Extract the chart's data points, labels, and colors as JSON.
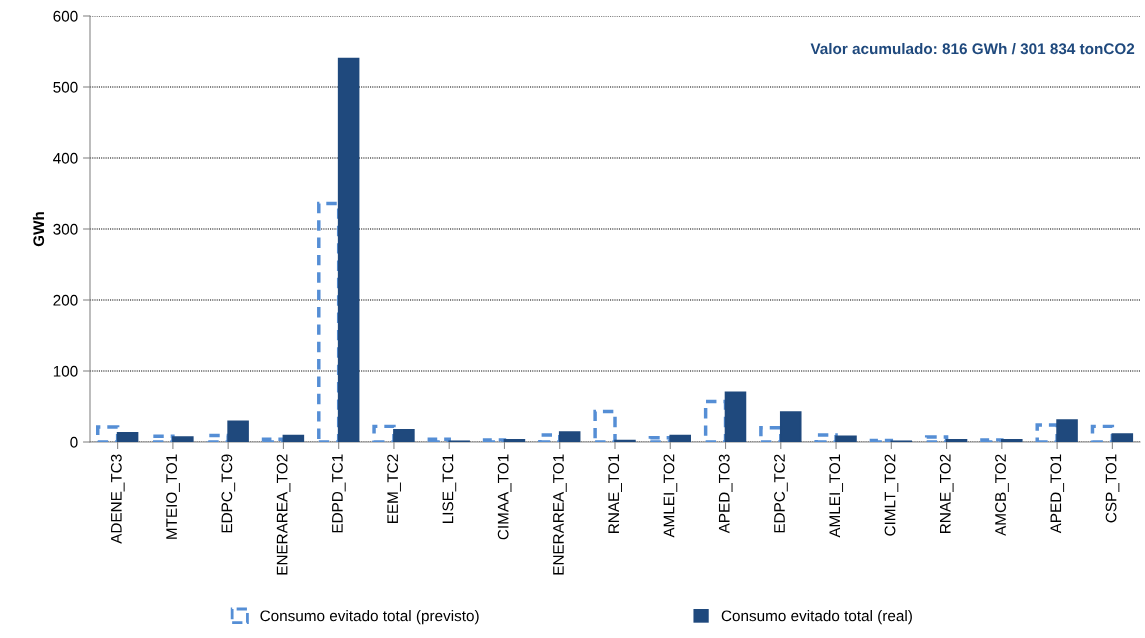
{
  "chart_data": {
    "type": "bar",
    "ylabel": "GWh",
    "categories": [
      "ADENE_TC3",
      "MTEIO_TO1",
      "EDPC_TC9",
      "ENERAREA_TO2",
      "EDPD_TC1",
      "EEM_TC2",
      "LISE_TC1",
      "CIMAA_TO1",
      "ENERAREA_TO1",
      "RNAE_TO1",
      "AMLEI_TO2",
      "APED_TO3",
      "EDPC_TC2",
      "AMLEI_TO1",
      "CIMLT_TO2",
      "RNAE_TO2",
      "AMCB_TO2",
      "APED_TO1",
      "CSP_TO1"
    ],
    "series": [
      {
        "name": "Consumo evitado total (previsto)",
        "color": "#558ed5",
        "line_style": "dashed",
        "values": [
          21,
          8,
          9,
          4,
          336,
          22,
          4,
          3,
          10,
          43,
          6,
          57,
          20,
          10,
          2,
          7,
          3,
          24,
          22
        ]
      },
      {
        "name": "Consumo evitado total (real)",
        "color": "#1f497d",
        "values": [
          13,
          7,
          29,
          9,
          540,
          17,
          1,
          3,
          14,
          2,
          9,
          70,
          42,
          8,
          1,
          3,
          3,
          31,
          11
        ]
      }
    ],
    "ylim": [
      0,
      600
    ],
    "yticks": [
      0,
      100,
      200,
      300,
      400,
      500,
      600
    ],
    "grid": "y",
    "legend": "bottom",
    "annotations": [
      "Valor acumulado: 816 GWh / 301 834 tonCO2"
    ]
  }
}
